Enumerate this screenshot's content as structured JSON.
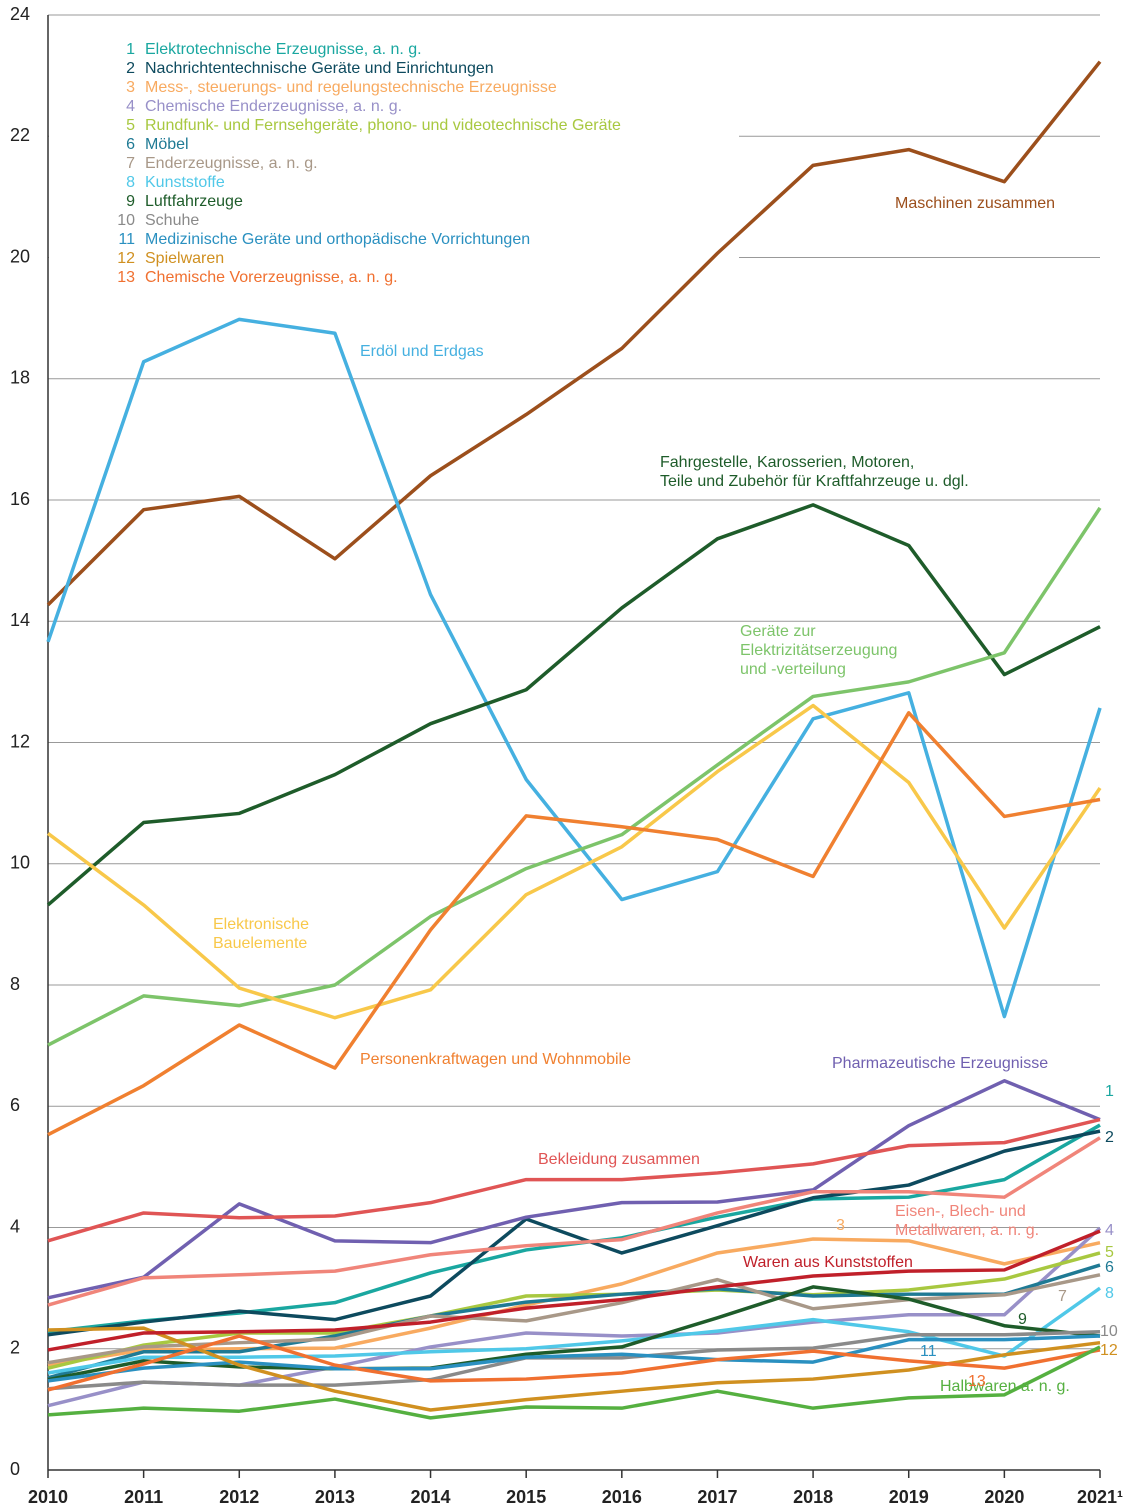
{
  "chart_data": {
    "type": "line",
    "categories": [
      "2010",
      "2011",
      "2012",
      "2013",
      "2014",
      "2015",
      "2016",
      "2017",
      "2018",
      "2019",
      "2020",
      "2021¹"
    ],
    "ylim": [
      0,
      24
    ],
    "yticks": [
      0,
      2,
      4,
      6,
      8,
      10,
      12,
      14,
      16,
      18,
      20,
      22,
      24
    ],
    "grid": true,
    "series": [
      {
        "number": "1",
        "name": "Elektrotechnische Erzeugnisse, a. n. g.",
        "color": "#1aa7a0",
        "values": [
          2.28,
          2.46,
          2.59,
          2.76,
          3.25,
          3.63,
          3.83,
          4.17,
          4.47,
          4.5,
          4.79,
          5.69
        ]
      },
      {
        "number": "2",
        "name": "Nachrichtentechnische Geräte und Einrichtungen",
        "color": "#0d4a5e",
        "values": [
          2.23,
          2.44,
          2.62,
          2.48,
          2.87,
          4.14,
          3.58,
          4.03,
          4.49,
          4.7,
          5.26,
          5.59
        ]
      },
      {
        "number": "3",
        "name": "Mess-, steuerungs- und regelungstechnische Erzeugnisse",
        "color": "#f8aa60",
        "values": [
          1.73,
          1.98,
          2.0,
          2.01,
          2.34,
          2.72,
          3.07,
          3.58,
          3.81,
          3.78,
          3.4,
          3.75
        ]
      },
      {
        "number": "4",
        "name": "Chemische Enderzeugnisse, a. n. g.",
        "color": "#9890c8",
        "values": [
          1.06,
          1.45,
          1.4,
          1.7,
          2.03,
          2.26,
          2.21,
          2.26,
          2.44,
          2.56,
          2.56,
          3.99
        ]
      },
      {
        "number": "5",
        "name": "Rundfunk- und Fernsehgeräte, phono- und videotechnische Geräte",
        "color": "#a8c840",
        "values": [
          1.68,
          2.06,
          2.26,
          2.26,
          2.54,
          2.87,
          2.9,
          2.97,
          2.89,
          2.97,
          3.15,
          3.58
        ]
      },
      {
        "number": "6",
        "name": "Möbel",
        "color": "#1f7a94",
        "values": [
          1.52,
          1.95,
          1.95,
          2.21,
          2.54,
          2.77,
          2.9,
          2.99,
          2.87,
          2.9,
          2.9,
          3.38
        ]
      },
      {
        "number": "7",
        "name": "Enderzeugnisse, a. n. g.",
        "color": "#a89888",
        "values": [
          1.77,
          2.03,
          2.1,
          2.16,
          2.54,
          2.46,
          2.76,
          3.14,
          2.66,
          2.81,
          2.89,
          3.22
        ]
      },
      {
        "number": "8",
        "name": "Kunststoffe",
        "color": "#50c8e8",
        "values": [
          1.6,
          1.86,
          1.86,
          1.88,
          1.95,
          2.0,
          2.13,
          2.29,
          2.48,
          2.28,
          1.88,
          3.0
        ]
      },
      {
        "number": "9",
        "name": "Luftfahrzeuge",
        "color": "#1e5c2a",
        "values": [
          1.49,
          1.8,
          1.7,
          1.67,
          1.68,
          1.91,
          2.03,
          2.51,
          3.02,
          2.82,
          2.38,
          2.21
        ]
      },
      {
        "number": "10",
        "name": "Schuhe",
        "color": "#8a8a8a",
        "values": [
          1.34,
          1.45,
          1.4,
          1.4,
          1.49,
          1.85,
          1.85,
          1.98,
          2.01,
          2.23,
          2.23,
          2.28
        ]
      },
      {
        "number": "11",
        "name": "Medizinische Geräte und orthopädische Vorrichtungen",
        "color": "#2a90c0",
        "values": [
          1.47,
          1.68,
          1.78,
          1.67,
          1.67,
          1.86,
          1.91,
          1.82,
          1.78,
          2.15,
          2.15,
          2.21
        ]
      },
      {
        "number": "12",
        "name": "Spielwaren",
        "color": "#d09020",
        "values": [
          2.31,
          2.34,
          1.73,
          1.3,
          0.99,
          1.16,
          1.3,
          1.44,
          1.5,
          1.65,
          1.9,
          2.1
        ]
      },
      {
        "number": "13",
        "name": "Chemische Vorerzeugnisse, a. n. g.",
        "color": "#f07030",
        "values": [
          1.32,
          1.75,
          2.21,
          1.73,
          1.47,
          1.5,
          1.6,
          1.82,
          1.96,
          1.8,
          1.68,
          1.98
        ]
      },
      {
        "name": "Maschinen zusammen",
        "color": "#9c4f1c",
        "values": [
          14.27,
          15.84,
          16.06,
          15.03,
          16.4,
          17.41,
          18.5,
          20.07,
          21.52,
          21.78,
          21.25,
          23.23
        ]
      },
      {
        "name": "Erdöl und Erdgas",
        "color": "#45b0e0",
        "values": [
          13.66,
          18.28,
          18.98,
          18.75,
          14.44,
          11.39,
          9.41,
          9.87,
          12.39,
          12.82,
          7.48,
          12.57
        ]
      },
      {
        "name": [
          "Fahrgestelle, Karosserien, Motoren,",
          "Teile und Zubehör für Kraftfahrzeuge u. dgl."
        ],
        "color": "#1e5c2a",
        "values": [
          9.32,
          10.68,
          10.83,
          11.47,
          12.31,
          12.87,
          14.22,
          15.36,
          15.92,
          15.25,
          13.12,
          13.91
        ]
      },
      {
        "name": [
          "Geräte zur",
          "Elektrizitätserzeugung",
          "und -verteilung"
        ],
        "color": "#7dc46a",
        "values": [
          7.01,
          7.82,
          7.66,
          8.0,
          9.13,
          9.92,
          10.48,
          11.63,
          12.76,
          13.0,
          13.48,
          15.87
        ]
      },
      {
        "name": [
          "Elektronische",
          "Bauelemente"
        ],
        "color": "#f8c84a",
        "values": [
          10.5,
          9.32,
          7.95,
          7.46,
          7.92,
          9.49,
          10.28,
          11.52,
          12.61,
          11.34,
          8.94,
          11.25
        ]
      },
      {
        "name": "Personenkraftwagen und Wohnmobile",
        "color": "#f08030",
        "values": [
          5.53,
          6.34,
          7.34,
          6.63,
          8.91,
          10.79,
          10.61,
          10.4,
          9.79,
          12.49,
          10.78,
          11.06
        ]
      },
      {
        "name": "Pharmazeutische Erzeugnisse",
        "color": "#7060b0",
        "values": [
          2.84,
          3.18,
          4.39,
          3.78,
          3.75,
          4.17,
          4.41,
          4.42,
          4.62,
          5.68,
          6.42,
          5.78
        ]
      },
      {
        "name": "Bekleidung zusammen",
        "color": "#e05555",
        "values": [
          3.78,
          4.24,
          4.16,
          4.19,
          4.41,
          4.79,
          4.79,
          4.9,
          5.05,
          5.35,
          5.4,
          5.78
        ]
      },
      {
        "name": [
          "Eisen-, Blech- und",
          "Metallwaren, a. n. g."
        ],
        "color": "#f0857a",
        "values": [
          2.72,
          3.17,
          3.22,
          3.28,
          3.55,
          3.7,
          3.8,
          4.24,
          4.59,
          4.59,
          4.5,
          5.48
        ]
      },
      {
        "name": "Waren aus Kunststoffen",
        "color": "#c0202a",
        "values": [
          1.98,
          2.26,
          2.28,
          2.31,
          2.44,
          2.67,
          2.81,
          3.02,
          3.2,
          3.28,
          3.3,
          3.94
        ]
      },
      {
        "name": "Halbwaren a. n. g.",
        "color": "#55b040",
        "values": [
          0.91,
          1.02,
          0.97,
          1.17,
          0.86,
          1.04,
          1.02,
          1.3,
          1.02,
          1.19,
          1.24,
          2.03
        ]
      }
    ]
  }
}
